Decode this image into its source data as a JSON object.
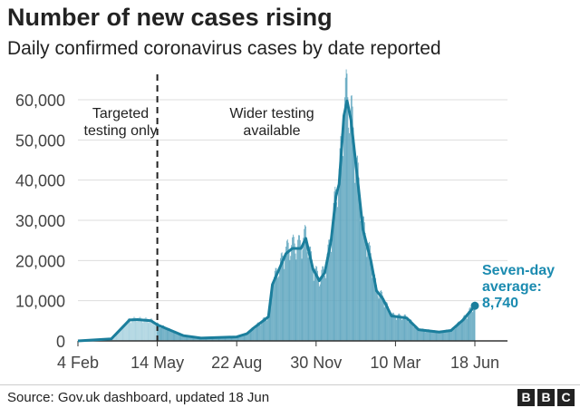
{
  "title": "Number of new cases rising",
  "subtitle": "Daily confirmed coronavirus cases by date reported",
  "source": "Source: Gov.uk dashboard, updated 18 Jun",
  "logo": "BBC",
  "chart_data": {
    "type": "bar",
    "title": "Number of new cases rising",
    "subtitle": "Daily confirmed coronavirus cases by date reported",
    "xlim": [
      "2020-02-04",
      "2021-06-18"
    ],
    "ylim": [
      0,
      60000
    ],
    "grid": true,
    "y_ticks": [
      0,
      10000,
      20000,
      30000,
      40000,
      50000,
      60000
    ],
    "y_tick_labels": [
      "0",
      "10,000",
      "20,000",
      "30,000",
      "40,000",
      "50,000",
      "60,000"
    ],
    "x_ticks": [
      "2020-02-04",
      "2020-05-14",
      "2020-08-22",
      "2020-11-30",
      "2021-03-10",
      "2021-06-18"
    ],
    "x_tick_labels": [
      "4 Feb",
      "14 May",
      "22 Aug",
      "30 Nov",
      "10 Mar",
      "18 Jun"
    ],
    "divider_date": "2020-05-14",
    "annotations": [
      {
        "text_lines": [
          "Targeted",
          "testing only"
        ]
      },
      {
        "text_lines": [
          "Wider testing",
          "available"
        ]
      }
    ],
    "end_label": {
      "lines": [
        "Seven-day",
        "average:",
        "8,740"
      ],
      "value": 8740
    },
    "colors": {
      "bars_before": "#a9d2df",
      "bars_after": "#5fa6bf",
      "line": "#1b7e9c",
      "label": "#1b8bb0"
    },
    "seven_day_average": [
      [
        "2020-02-04",
        0
      ],
      [
        "2020-03-17",
        500
      ],
      [
        "2020-04-09",
        5200
      ],
      [
        "2020-04-19",
        5300
      ],
      [
        "2020-05-06",
        5000
      ],
      [
        "2020-05-14",
        4000
      ],
      [
        "2020-06-16",
        1300
      ],
      [
        "2020-07-08",
        700
      ],
      [
        "2020-08-22",
        1000
      ],
      [
        "2020-09-04",
        1800
      ],
      [
        "2020-09-11",
        3000
      ],
      [
        "2020-10-01",
        6000
      ],
      [
        "2020-10-06",
        14000
      ],
      [
        "2020-10-23",
        21700
      ],
      [
        "2020-10-31",
        23000
      ],
      [
        "2020-11-11",
        23000
      ],
      [
        "2020-11-17",
        25500
      ],
      [
        "2020-11-26",
        17900
      ],
      [
        "2020-12-04",
        15000
      ],
      [
        "2020-12-11",
        17000
      ],
      [
        "2020-12-19",
        25000
      ],
      [
        "2020-12-25",
        36000
      ],
      [
        "2020-12-29",
        39000
      ],
      [
        "2021-01-04",
        56000
      ],
      [
        "2021-01-08",
        59700
      ],
      [
        "2021-01-13",
        55000
      ],
      [
        "2021-01-21",
        40500
      ],
      [
        "2021-01-28",
        27700
      ],
      [
        "2021-02-07",
        20000
      ],
      [
        "2021-02-14",
        12500
      ],
      [
        "2021-02-22",
        10500
      ],
      [
        "2021-03-05",
        6200
      ],
      [
        "2021-03-24",
        5700
      ],
      [
        "2021-04-08",
        2800
      ],
      [
        "2021-05-04",
        2200
      ],
      [
        "2021-05-19",
        2600
      ],
      [
        "2021-06-03",
        5200
      ],
      [
        "2021-06-18",
        8740
      ]
    ]
  }
}
